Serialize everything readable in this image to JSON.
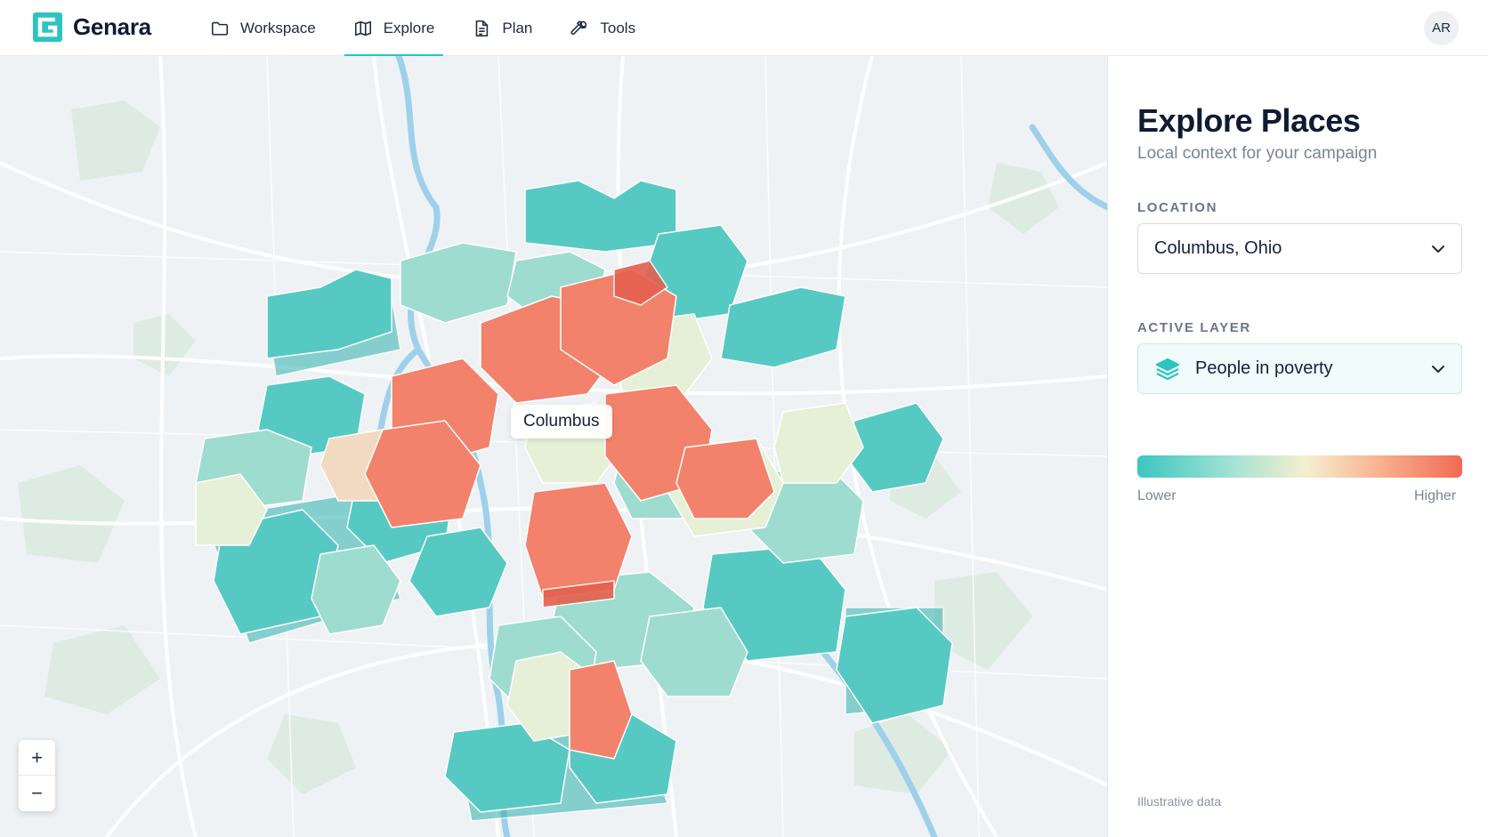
{
  "app": {
    "name": "Genara",
    "brand_color": "#2bc4c0"
  },
  "nav": {
    "items": [
      {
        "label": "Workspace",
        "icon": "folder-icon"
      },
      {
        "label": "Explore",
        "icon": "map-icon",
        "active": true
      },
      {
        "label": "Plan",
        "icon": "document-icon"
      },
      {
        "label": "Tools",
        "icon": "wrench-icon"
      }
    ]
  },
  "user": {
    "initials": "AR"
  },
  "map": {
    "city_label": "Columbus",
    "zoom_in": "+",
    "zoom_out": "−",
    "low_color": "#3cc6bf",
    "high_color": "#f06a55"
  },
  "panel": {
    "title": "Explore Places",
    "subtitle": "Local context for your campaign",
    "location_label": "LOCATION",
    "location_value": "Columbus, Ohio",
    "layer_label": "ACTIVE LAYER",
    "layer_value": "People in poverty",
    "legend_low": "Lower",
    "legend_high": "Higher",
    "footnote": "Illustrative data"
  }
}
